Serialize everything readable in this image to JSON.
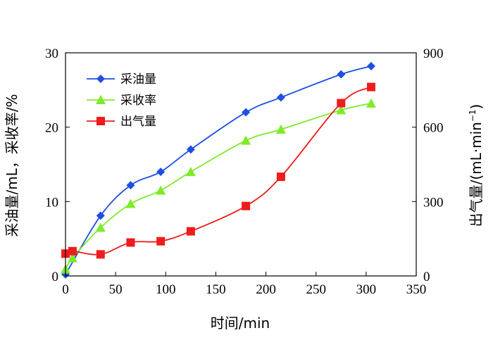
{
  "chart_data": {
    "type": "line",
    "xlabel": "时间/min",
    "ylabel_left": "采油量/mL，采收率/%",
    "ylabel_right": "出气量/(mL·min",
    "ylabel_right_sup": "−1",
    "ylabel_right_close": ")",
    "xlim": [
      0,
      350
    ],
    "ylim_left": [
      0,
      30
    ],
    "ylim_right": [
      0,
      900
    ],
    "x_ticks": [
      0,
      50,
      100,
      150,
      200,
      250,
      300,
      350
    ],
    "y_left_ticks": [
      0,
      10,
      20,
      30
    ],
    "y_right_ticks": [
      0,
      300,
      600,
      900
    ],
    "legend_position": "top-left",
    "series": [
      {
        "name": "采油量",
        "axis": "left",
        "color": "#1f4fe0",
        "marker": "diamond",
        "x": [
          0,
          35,
          65,
          95,
          125,
          180,
          215,
          275,
          305
        ],
        "y": [
          0.2,
          8.1,
          12.2,
          14.0,
          17.0,
          22.0,
          24.0,
          27.1,
          28.2
        ]
      },
      {
        "name": "采收率",
        "axis": "left",
        "color": "#7fea2a",
        "marker": "triangle",
        "x": [
          0,
          7,
          35,
          65,
          95,
          125,
          180,
          215,
          275,
          305
        ],
        "y": [
          0.9,
          2.4,
          6.5,
          9.7,
          11.5,
          14.0,
          18.2,
          19.7,
          22.3,
          23.2
        ]
      },
      {
        "name": "出气量",
        "axis": "right",
        "color": "#ee1c1c",
        "marker": "square",
        "x": [
          0,
          7,
          35,
          65,
          95,
          125,
          180,
          215,
          275,
          305
        ],
        "y": [
          90,
          100,
          87,
          135,
          140,
          180,
          282,
          400,
          697,
          762
        ]
      }
    ]
  }
}
